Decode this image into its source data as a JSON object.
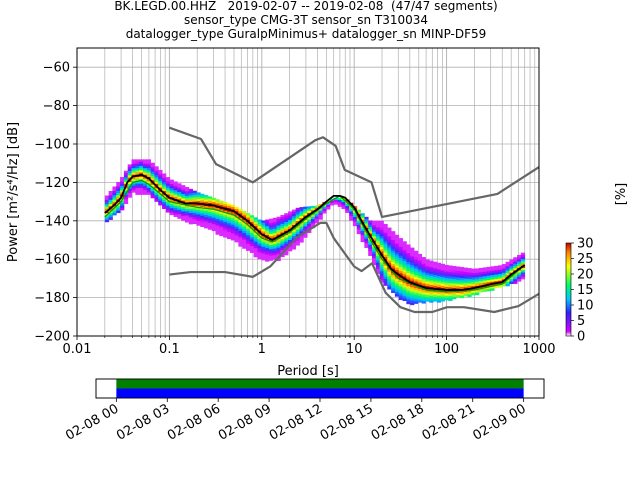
{
  "title_lines": [
    "BK.LEGD.00.HHZ   2019-02-07 -- 2019-02-08  (47/47 segments)",
    "sensor_type CMG-3T sensor_sn T310034",
    "datalogger_type GuralpMinimus+ datalogger_sn MINP-DF59"
  ],
  "chart_data": [
    {
      "type": "heatmap",
      "title": "BK.LEGD.00.HHZ   2019-02-07 -- 2019-02-08  (47/47 segments)",
      "xlabel": "Period [s]",
      "ylabel": "Power [m²/s⁴/Hz] [dB]",
      "xscale": "log",
      "xlim": [
        0.01,
        1000
      ],
      "ylim": [
        -200,
        -50
      ],
      "grid": true,
      "x_ticks": [
        "0.01",
        "0.1",
        "1",
        "10",
        "100",
        "1000"
      ],
      "y_ticks": [
        "−60",
        "−80",
        "−100",
        "−120",
        "−140",
        "−160",
        "−180",
        "−200"
      ],
      "y_tick_values": [
        -60,
        -80,
        -100,
        -120,
        -140,
        -160,
        -180,
        -200
      ],
      "colorbar": {
        "label": "[%]",
        "range": [
          0,
          30
        ],
        "ticks": [
          "0",
          "5",
          "10",
          "15",
          "20",
          "25",
          "30"
        ]
      },
      "density_band": {
        "period": [
          0.02,
          0.03,
          0.04,
          0.06,
          0.1,
          0.2,
          0.3,
          0.5,
          1,
          1.5,
          2.5,
          4,
          6,
          8,
          10,
          15,
          20,
          30,
          40,
          60,
          100,
          200,
          400,
          700
        ],
        "upper": [
          -128,
          -118,
          -108,
          -108,
          -118,
          -125,
          -128,
          -132,
          -140,
          -138,
          -133,
          -132,
          -128,
          -128,
          -132,
          -140,
          -140,
          -148,
          -153,
          -160,
          -163,
          -165,
          -163,
          -156
        ],
        "lower": [
          -141,
          -134,
          -125,
          -126,
          -136,
          -142,
          -145,
          -150,
          -160,
          -160,
          -152,
          -140,
          -130,
          -134,
          -142,
          -158,
          -172,
          -180,
          -183,
          -182,
          -181,
          -178,
          -174,
          -170
        ]
      },
      "series": [
        {
          "style": "mean",
          "color": "#000000",
          "x": [
            0.02,
            0.025,
            0.03,
            0.035,
            0.04,
            0.05,
            0.06,
            0.08,
            0.1,
            0.15,
            0.2,
            0.3,
            0.5,
            0.7,
            1,
            1.3,
            2,
            3,
            4,
            5,
            6,
            7,
            8,
            10,
            12,
            15,
            20,
            25,
            30,
            40,
            60,
            100,
            150,
            200,
            300,
            400,
            500,
            700
          ],
          "y": [
            -136,
            -132,
            -128,
            -120,
            -117,
            -116,
            -118,
            -124,
            -128,
            -131,
            -131,
            -132,
            -135,
            -140,
            -147,
            -150,
            -145,
            -138,
            -134,
            -130,
            -127,
            -127,
            -128,
            -133,
            -140,
            -148,
            -158,
            -165,
            -168,
            -172,
            -175,
            -176,
            -176,
            -175,
            -173,
            -172,
            -168,
            -163
          ]
        },
        {
          "style": "mode",
          "color": "#00a000",
          "x": [
            0.02,
            0.03,
            0.04,
            0.05,
            0.06,
            0.08,
            0.1,
            0.2,
            0.3,
            0.5,
            0.7,
            1,
            1.3,
            2,
            3,
            5,
            7,
            10,
            15,
            20,
            30,
            60,
            100,
            200,
            400,
            700
          ],
          "y": [
            -138,
            -130,
            -120,
            -119,
            -121,
            -126,
            -130,
            -133,
            -134,
            -137,
            -142,
            -149,
            -151,
            -146,
            -139,
            -131,
            -127,
            -134,
            -150,
            -160,
            -170,
            -176,
            -177,
            -176,
            -173,
            -163
          ]
        },
        {
          "style": "NHNM",
          "color": "#666666",
          "x": [
            0.1,
            0.22,
            0.32,
            0.8,
            3.8,
            4.6,
            6.3,
            7.9,
            15.4,
            20,
            354.8,
            1000
          ],
          "y": [
            -91.5,
            -97.4,
            -110.5,
            -120,
            -98,
            -96.5,
            -101,
            -113.5,
            -120,
            -138,
            -126,
            -112
          ]
        },
        {
          "style": "NLNM",
          "color": "#666666",
          "x": [
            0.1,
            0.17,
            0.4,
            0.8,
            1.24,
            2.4,
            4.3,
            5,
            6,
            10,
            12,
            15.6,
            21.9,
            31.6,
            45,
            70,
            101,
            154,
            328,
            600,
            1000
          ],
          "y": [
            -168,
            -166.7,
            -166.7,
            -169.2,
            -163.7,
            -148.6,
            -141.1,
            -141.1,
            -149,
            -163.8,
            -166.2,
            -162.1,
            -177.5,
            -185,
            -187.5,
            -187.5,
            -185,
            -185,
            -187.5,
            -184.4,
            -178
          ]
        }
      ]
    },
    {
      "type": "bar",
      "description_labels": false,
      "x_ticks": [
        "02-08 00",
        "02-08 03",
        "02-08 06",
        "02-08 09",
        "02-08 12",
        "02-08 15",
        "02-08 18",
        "02-08 21",
        "02-09 00"
      ],
      "x_tick_hours": [
        0,
        3,
        6,
        9,
        12,
        15,
        18,
        21,
        24
      ],
      "xlim_hours": [
        -1.2,
        25.2
      ],
      "series": [
        {
          "color": "#008000",
          "start_hour": 0,
          "end_hour": 24
        },
        {
          "color": "#0000ff",
          "start_hour": 0,
          "end_hour": 24
        }
      ]
    }
  ]
}
